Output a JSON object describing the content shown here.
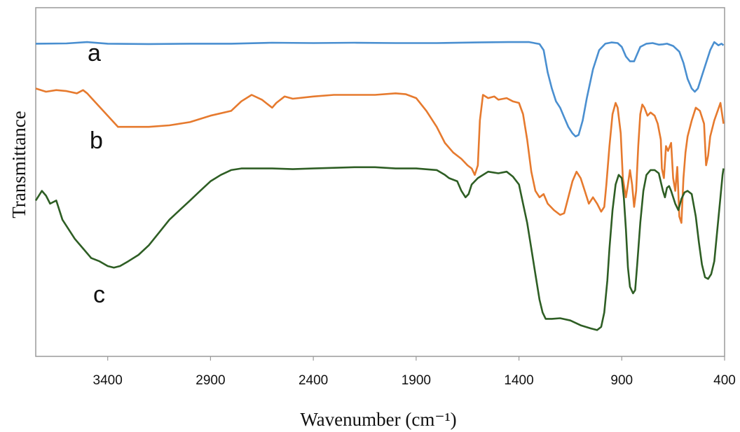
{
  "chart_data": {
    "type": "line",
    "title": "",
    "xlabel": "Wavenumber (cm⁻¹)",
    "ylabel": "Transmittance",
    "xlim": [
      3750,
      400
    ],
    "ylim": [
      0,
      100
    ],
    "x_reversed": true,
    "x_ticks": [
      3400,
      2900,
      2400,
      1900,
      1400,
      900,
      400
    ],
    "x_tick_labels": [
      "3400",
      "2900",
      "2400",
      "1900",
      "1400",
      "900",
      "400"
    ],
    "grid": false,
    "series": [
      {
        "name": "a",
        "color": "#4a8fd0",
        "points": [
          [
            3750,
            94.0
          ],
          [
            3600,
            94.1
          ],
          [
            3500,
            94.5
          ],
          [
            3400,
            94.0
          ],
          [
            3200,
            93.9
          ],
          [
            3000,
            94.0
          ],
          [
            2800,
            94.0
          ],
          [
            2600,
            94.3
          ],
          [
            2400,
            94.2
          ],
          [
            2200,
            94.3
          ],
          [
            2000,
            94.2
          ],
          [
            1800,
            94.2
          ],
          [
            1600,
            94.4
          ],
          [
            1450,
            94.5
          ],
          [
            1350,
            94.5
          ],
          [
            1300,
            93.9
          ],
          [
            1280,
            92.0
          ],
          [
            1260,
            85.0
          ],
          [
            1240,
            80.0
          ],
          [
            1220,
            76.0
          ],
          [
            1200,
            74.0
          ],
          [
            1180,
            71.0
          ],
          [
            1160,
            68.0
          ],
          [
            1140,
            66.0
          ],
          [
            1125,
            65.0
          ],
          [
            1110,
            65.5
          ],
          [
            1090,
            70.0
          ],
          [
            1070,
            77.0
          ],
          [
            1040,
            86.0
          ],
          [
            1010,
            92.0
          ],
          [
            980,
            94.0
          ],
          [
            950,
            94.4
          ],
          [
            920,
            94.2
          ],
          [
            900,
            93.0
          ],
          [
            880,
            90.0
          ],
          [
            860,
            88.5
          ],
          [
            840,
            88.5
          ],
          [
            830,
            90.0
          ],
          [
            810,
            93.0
          ],
          [
            780,
            94.0
          ],
          [
            750,
            94.2
          ],
          [
            720,
            93.7
          ],
          [
            700,
            93.8
          ],
          [
            680,
            94.0
          ],
          [
            650,
            93.3
          ],
          [
            620,
            91.5
          ],
          [
            600,
            88.0
          ],
          [
            580,
            83.0
          ],
          [
            560,
            80.0
          ],
          [
            545,
            79.0
          ],
          [
            530,
            80.0
          ],
          [
            510,
            84.0
          ],
          [
            490,
            88.0
          ],
          [
            470,
            92.0
          ],
          [
            450,
            94.5
          ],
          [
            430,
            93.5
          ],
          [
            415,
            94.0
          ],
          [
            405,
            93.5
          ]
        ]
      },
      {
        "name": "b",
        "color": "#e67a2e",
        "points": [
          [
            3750,
            80.0
          ],
          [
            3700,
            79.0
          ],
          [
            3650,
            79.5
          ],
          [
            3600,
            79.2
          ],
          [
            3550,
            78.5
          ],
          [
            3520,
            79.5
          ],
          [
            3500,
            78.5
          ],
          [
            3450,
            75.0
          ],
          [
            3400,
            71.5
          ],
          [
            3350,
            68.0
          ],
          [
            3300,
            68.0
          ],
          [
            3200,
            68.0
          ],
          [
            3100,
            68.5
          ],
          [
            3000,
            69.5
          ],
          [
            2900,
            71.5
          ],
          [
            2800,
            73.0
          ],
          [
            2750,
            76.0
          ],
          [
            2700,
            78.0
          ],
          [
            2650,
            76.5
          ],
          [
            2630,
            75.5
          ],
          [
            2600,
            74.0
          ],
          [
            2580,
            75.5
          ],
          [
            2540,
            77.5
          ],
          [
            2500,
            76.8
          ],
          [
            2400,
            77.5
          ],
          [
            2300,
            78.0
          ],
          [
            2200,
            78.0
          ],
          [
            2100,
            78.0
          ],
          [
            2000,
            78.5
          ],
          [
            1950,
            78.2
          ],
          [
            1900,
            77.0
          ],
          [
            1850,
            73.0
          ],
          [
            1800,
            68.0
          ],
          [
            1760,
            63.0
          ],
          [
            1720,
            60.0
          ],
          [
            1680,
            58.0
          ],
          [
            1650,
            56.0
          ],
          [
            1630,
            55.0
          ],
          [
            1615,
            53.0
          ],
          [
            1600,
            56.0
          ],
          [
            1590,
            70.0
          ],
          [
            1575,
            78.0
          ],
          [
            1550,
            77.0
          ],
          [
            1520,
            77.5
          ],
          [
            1500,
            76.5
          ],
          [
            1460,
            77.0
          ],
          [
            1430,
            76.0
          ],
          [
            1400,
            75.5
          ],
          [
            1380,
            72.0
          ],
          [
            1360,
            64.0
          ],
          [
            1340,
            54.0
          ],
          [
            1320,
            48.0
          ],
          [
            1300,
            46.0
          ],
          [
            1280,
            47.0
          ],
          [
            1260,
            44.0
          ],
          [
            1230,
            42.0
          ],
          [
            1200,
            40.5
          ],
          [
            1180,
            41.0
          ],
          [
            1160,
            46.0
          ],
          [
            1140,
            51.0
          ],
          [
            1120,
            54.0
          ],
          [
            1100,
            52.0
          ],
          [
            1080,
            48.0
          ],
          [
            1060,
            44.0
          ],
          [
            1040,
            46.0
          ],
          [
            1020,
            44.0
          ],
          [
            1000,
            41.5
          ],
          [
            985,
            43.0
          ],
          [
            975,
            50.0
          ],
          [
            960,
            62.0
          ],
          [
            945,
            72.0
          ],
          [
            930,
            75.5
          ],
          [
            920,
            74.0
          ],
          [
            905,
            66.0
          ],
          [
            895,
            52.0
          ],
          [
            880,
            46.0
          ],
          [
            870,
            50.0
          ],
          [
            860,
            54.5
          ],
          [
            850,
            50.0
          ],
          [
            840,
            43.0
          ],
          [
            830,
            48.0
          ],
          [
            820,
            62.0
          ],
          [
            810,
            72.0
          ],
          [
            800,
            75.0
          ],
          [
            790,
            74.0
          ],
          [
            775,
            71.5
          ],
          [
            760,
            72.5
          ],
          [
            740,
            71.5
          ],
          [
            725,
            69.0
          ],
          [
            710,
            64.0
          ],
          [
            705,
            55.0
          ],
          [
            695,
            52.0
          ],
          [
            685,
            62.0
          ],
          [
            675,
            60.5
          ],
          [
            660,
            63.0
          ],
          [
            650,
            52.0
          ],
          [
            640,
            48.0
          ],
          [
            630,
            55.5
          ],
          [
            620,
            40.0
          ],
          [
            610,
            38.0
          ],
          [
            600,
            52.0
          ],
          [
            590,
            60.0
          ],
          [
            580,
            65.0
          ],
          [
            560,
            70.0
          ],
          [
            540,
            74.0
          ],
          [
            520,
            73.0
          ],
          [
            500,
            69.0
          ],
          [
            490,
            56.0
          ],
          [
            480,
            59.0
          ],
          [
            470,
            65.0
          ],
          [
            450,
            70.0
          ],
          [
            420,
            75.5
          ],
          [
            405,
            69.0
          ]
        ]
      },
      {
        "name": "c",
        "color": "#2e5e24",
        "points": [
          [
            3750,
            45.0
          ],
          [
            3720,
            48.0
          ],
          [
            3700,
            46.5
          ],
          [
            3680,
            44.0
          ],
          [
            3650,
            45.0
          ],
          [
            3620,
            39.0
          ],
          [
            3600,
            37.0
          ],
          [
            3560,
            33.0
          ],
          [
            3520,
            30.0
          ],
          [
            3480,
            27.0
          ],
          [
            3440,
            26.0
          ],
          [
            3400,
            24.5
          ],
          [
            3370,
            24.0
          ],
          [
            3340,
            24.5
          ],
          [
            3300,
            26.0
          ],
          [
            3250,
            28.0
          ],
          [
            3200,
            31.0
          ],
          [
            3150,
            35.0
          ],
          [
            3100,
            39.0
          ],
          [
            3050,
            42.0
          ],
          [
            3000,
            45.0
          ],
          [
            2950,
            48.0
          ],
          [
            2900,
            51.0
          ],
          [
            2850,
            53.0
          ],
          [
            2800,
            54.5
          ],
          [
            2750,
            55.0
          ],
          [
            2700,
            55.0
          ],
          [
            2600,
            55.0
          ],
          [
            2500,
            54.8
          ],
          [
            2400,
            55.0
          ],
          [
            2300,
            55.2
          ],
          [
            2200,
            55.4
          ],
          [
            2100,
            55.4
          ],
          [
            2000,
            55.0
          ],
          [
            1900,
            55.0
          ],
          [
            1800,
            54.5
          ],
          [
            1760,
            53.0
          ],
          [
            1740,
            52.0
          ],
          [
            1700,
            51.0
          ],
          [
            1680,
            48.0
          ],
          [
            1660,
            46.0
          ],
          [
            1645,
            47.0
          ],
          [
            1630,
            50.0
          ],
          [
            1600,
            52.0
          ],
          [
            1550,
            54.0
          ],
          [
            1500,
            53.5
          ],
          [
            1460,
            54.0
          ],
          [
            1430,
            52.5
          ],
          [
            1400,
            50.0
          ],
          [
            1380,
            44.0
          ],
          [
            1360,
            38.0
          ],
          [
            1340,
            30.0
          ],
          [
            1320,
            22.0
          ],
          [
            1300,
            14.0
          ],
          [
            1285,
            10.0
          ],
          [
            1270,
            8.0
          ],
          [
            1240,
            8.0
          ],
          [
            1200,
            8.2
          ],
          [
            1150,
            7.5
          ],
          [
            1100,
            6.0
          ],
          [
            1050,
            5.0
          ],
          [
            1020,
            4.5
          ],
          [
            1000,
            5.5
          ],
          [
            985,
            10.0
          ],
          [
            970,
            20.0
          ],
          [
            960,
            30.0
          ],
          [
            945,
            42.0
          ],
          [
            930,
            50.0
          ],
          [
            915,
            53.0
          ],
          [
            900,
            52.0
          ],
          [
            890,
            46.0
          ],
          [
            880,
            36.0
          ],
          [
            870,
            24.0
          ],
          [
            860,
            18.0
          ],
          [
            845,
            16.0
          ],
          [
            835,
            17.0
          ],
          [
            825,
            25.0
          ],
          [
            810,
            38.0
          ],
          [
            795,
            48.0
          ],
          [
            780,
            53.0
          ],
          [
            760,
            54.5
          ],
          [
            740,
            54.5
          ],
          [
            720,
            53.5
          ],
          [
            700,
            48.0
          ],
          [
            690,
            46.0
          ],
          [
            680,
            49.0
          ],
          [
            670,
            49.5
          ],
          [
            660,
            48.0
          ],
          [
            640,
            44.0
          ],
          [
            625,
            42.0
          ],
          [
            610,
            45.5
          ],
          [
            595,
            47.5
          ],
          [
            580,
            48.0
          ],
          [
            560,
            47.0
          ],
          [
            540,
            40.0
          ],
          [
            525,
            32.0
          ],
          [
            510,
            25.0
          ],
          [
            495,
            21.0
          ],
          [
            480,
            20.5
          ],
          [
            465,
            22.0
          ],
          [
            450,
            26.0
          ],
          [
            435,
            36.0
          ],
          [
            420,
            46.0
          ],
          [
            410,
            53.0
          ],
          [
            405,
            55.0
          ]
        ]
      }
    ]
  }
}
